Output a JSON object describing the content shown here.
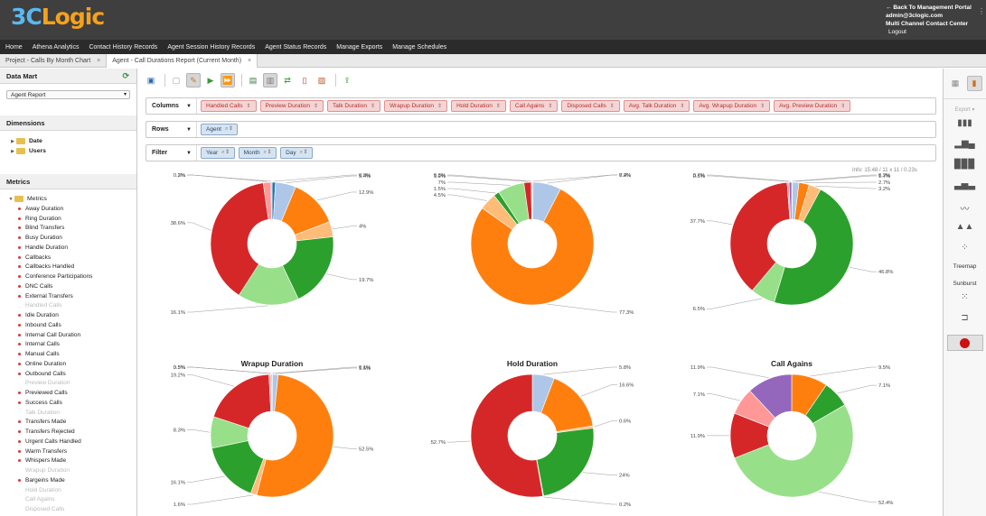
{
  "header": {
    "logo_a": "3C",
    "logo_b": "Logic",
    "back_link": "Back To Management Portal",
    "user": "admin@3clogic.com",
    "org": "Multi Channel Contact Center",
    "logout": "Logout"
  },
  "nav": [
    "Home",
    "Athena Analytics",
    "Contact History Records",
    "Agent Session History Records",
    "Agent Status Records",
    "Manage Exports",
    "Manage Schedules"
  ],
  "tabs": [
    {
      "label": "Project - Calls By Month Chart",
      "active": false
    },
    {
      "label": "Agent - Call Durations Report (Current Month)",
      "active": true
    }
  ],
  "left": {
    "data_mart_title": "Data Mart",
    "data_mart_value": "Agent Report",
    "dimensions_title": "Dimensions",
    "dimensions": [
      "Date",
      "Users"
    ],
    "metrics_title": "Metrics",
    "metrics_root": "Metrics",
    "metrics": [
      {
        "label": "Away Duration",
        "disabled": false
      },
      {
        "label": "Ring Duration",
        "disabled": false
      },
      {
        "label": "Blind Transfers",
        "disabled": false
      },
      {
        "label": "Busy Duration",
        "disabled": false
      },
      {
        "label": "Handle Duration",
        "disabled": false
      },
      {
        "label": "Callbacks",
        "disabled": false
      },
      {
        "label": "Callbacks Handled",
        "disabled": false
      },
      {
        "label": "Conference Participations",
        "disabled": false
      },
      {
        "label": "DNC Calls",
        "disabled": false
      },
      {
        "label": "External Transfers",
        "disabled": false
      },
      {
        "label": "Handled Calls",
        "disabled": true
      },
      {
        "label": "Idle Duration",
        "disabled": false
      },
      {
        "label": "Inbound Calls",
        "disabled": false
      },
      {
        "label": "Internal Call Duration",
        "disabled": false
      },
      {
        "label": "Internal Calls",
        "disabled": false
      },
      {
        "label": "Manual Calls",
        "disabled": false
      },
      {
        "label": "Online Duration",
        "disabled": false
      },
      {
        "label": "Outbound Calls",
        "disabled": false
      },
      {
        "label": "Preview Duration",
        "disabled": true
      },
      {
        "label": "Previewed Calls",
        "disabled": false
      },
      {
        "label": "Success Calls",
        "disabled": false
      },
      {
        "label": "Talk Duration",
        "disabled": true
      },
      {
        "label": "Transfers Made",
        "disabled": false
      },
      {
        "label": "Transfers Rejected",
        "disabled": false
      },
      {
        "label": "Urgent Calls Handled",
        "disabled": false
      },
      {
        "label": "Warm Transfers",
        "disabled": false
      },
      {
        "label": "Whispers Made",
        "disabled": false
      },
      {
        "label": "Wrapup Duration",
        "disabled": true
      },
      {
        "label": "Bargeins Made",
        "disabled": false
      },
      {
        "label": "Hold Duration",
        "disabled": true
      },
      {
        "label": "Call Agains",
        "disabled": true
      },
      {
        "label": "Disposed Calls",
        "disabled": true
      }
    ]
  },
  "layout": {
    "columns_label": "Columns",
    "columns": [
      "Handled Calls",
      "Preview Duration",
      "Talk Duration",
      "Wrapup Duration",
      "Hold Duration",
      "Call Agains",
      "Disposed Calls",
      "Avg. Talk Duration",
      "Avg. Wrapup Duration",
      "Avg. Preview Duration"
    ],
    "rows_label": "Rows",
    "rows": [
      "Agent"
    ],
    "filter_label": "Filter",
    "filters": [
      "Year",
      "Month",
      "Day"
    ]
  },
  "info_text": "Info: 15:48 / 11 x 11 / 0.23s",
  "right": {
    "export_label": "Export",
    "treemap_label": "Treemap",
    "sunburst_label": "Sunburst"
  },
  "colors": {
    "blue": "#aec7e8",
    "orange": "#ff7f0e",
    "lightorange": "#ffbb78",
    "green": "#2ca02c",
    "lightgreen": "#98df8a",
    "red": "#d62728",
    "pink": "#ff9896",
    "purple": "#9467bd",
    "lavender": "#c5b0d5",
    "darkblue": "#1f77b4"
  },
  "chart_data": [
    {
      "type": "pie",
      "title": "",
      "slices": [
        {
          "value": 0.9,
          "label": "0.9%",
          "color": "darkblue"
        },
        {
          "value": 5.4,
          "label": "5.4%",
          "color": "blue"
        },
        {
          "value": 12.9,
          "label": "12.9%",
          "color": "orange"
        },
        {
          "value": 4,
          "label": "4%",
          "color": "lightorange"
        },
        {
          "value": 19.7,
          "label": "19.7%",
          "color": "green"
        },
        {
          "value": 16.1,
          "label": "16.1%",
          "color": "lightgreen"
        },
        {
          "value": 38.6,
          "label": "38.6%",
          "color": "red"
        },
        {
          "value": 2,
          "label": "2%",
          "color": "pink"
        },
        {
          "value": 0.3,
          "label": "0.3%",
          "color": "lavender"
        }
      ]
    },
    {
      "type": "pie",
      "title": "",
      "slices": [
        {
          "value": 0.2,
          "label": "0.2%",
          "color": "darkblue"
        },
        {
          "value": 7.4,
          "label": "7.4%",
          "color": "blue"
        },
        {
          "value": 77.3,
          "label": "77.3%",
          "color": "orange"
        },
        {
          "value": 4.5,
          "label": "4.5%",
          "color": "lightorange"
        },
        {
          "value": 1.5,
          "label": "1.5%",
          "color": "green"
        },
        {
          "value": 7,
          "label": "7%",
          "color": "lightgreen"
        },
        {
          "value": 1.9,
          "label": "1.9%",
          "color": "red"
        },
        {
          "value": 0.3,
          "label": "0.3%",
          "color": "pink"
        }
      ]
    },
    {
      "type": "pie",
      "title": "",
      "slices": [
        {
          "value": 0.2,
          "label": "0.2%",
          "color": "darkblue"
        },
        {
          "value": 1.7,
          "label": "1.7%",
          "color": "blue"
        },
        {
          "value": 2.7,
          "label": "2.7%",
          "color": "orange"
        },
        {
          "value": 3.2,
          "label": "3.2%",
          "color": "lightorange"
        },
        {
          "value": 46.8,
          "label": "46.8%",
          "color": "green"
        },
        {
          "value": 6.5,
          "label": "6.5%",
          "color": "lightgreen"
        },
        {
          "value": 37.7,
          "label": "37.7%",
          "color": "red"
        },
        {
          "value": 0.5,
          "label": "0.5%",
          "color": "pink"
        },
        {
          "value": 0.7,
          "label": "0.7%",
          "color": "purple"
        }
      ]
    },
    {
      "type": "pie",
      "title": "Wrapup Duration",
      "slices": [
        {
          "value": 0.1,
          "label": "0.1%",
          "color": "darkblue"
        },
        {
          "value": 1.5,
          "label": "1.5%",
          "color": "blue"
        },
        {
          "value": 52.5,
          "label": "52.5%",
          "color": "orange"
        },
        {
          "value": 1.6,
          "label": "1.6%",
          "color": "lightorange"
        },
        {
          "value": 16.1,
          "label": "16.1%",
          "color": "green"
        },
        {
          "value": 8.3,
          "label": "8.3%",
          "color": "lightgreen"
        },
        {
          "value": 19.2,
          "label": "19.2%",
          "color": "red"
        },
        {
          "value": 0.5,
          "label": "0.5%",
          "color": "pink"
        },
        {
          "value": 0.3,
          "label": "0.3%",
          "color": "lavender"
        }
      ]
    },
    {
      "type": "pie",
      "title": "Hold Duration",
      "slices": [
        {
          "value": 5.8,
          "label": "5.8%",
          "color": "blue"
        },
        {
          "value": 16.6,
          "label": "16.6%",
          "color": "orange"
        },
        {
          "value": 0.6,
          "label": "0.6%",
          "color": "lightorange"
        },
        {
          "value": 24,
          "label": "24%",
          "color": "green"
        },
        {
          "value": 0.2,
          "label": "0.2%",
          "color": "lightgreen"
        },
        {
          "value": 52.7,
          "label": "52.7%",
          "color": "red"
        }
      ]
    },
    {
      "type": "pie",
      "title": "Call Agains",
      "slices": [
        {
          "value": 9.5,
          "label": "9.5%",
          "color": "orange"
        },
        {
          "value": 7.1,
          "label": "7.1%",
          "color": "green"
        },
        {
          "value": 52.4,
          "label": "52.4%",
          "color": "lightgreen"
        },
        {
          "value": 11.9,
          "label": "11.9%",
          "color": "red"
        },
        {
          "value": 7.1,
          "label": "7.1%",
          "color": "pink"
        },
        {
          "value": 11.9,
          "label": "11.9%",
          "color": "purple"
        }
      ]
    }
  ]
}
